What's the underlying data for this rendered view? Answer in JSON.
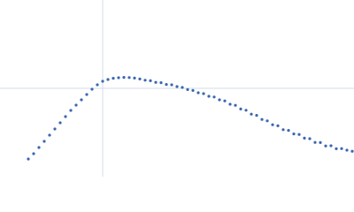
{
  "chart_data": {
    "type": "scatter",
    "x": [
      8,
      9.5,
      11,
      12.5,
      14,
      15.5,
      17,
      18.5,
      20,
      21.5,
      23,
      24.5,
      26,
      27.5,
      29,
      30.5,
      32,
      33.5,
      35,
      36.5,
      38,
      39.5,
      41,
      42.5,
      44,
      45.5,
      47,
      48.5,
      50,
      51.5,
      53,
      54.5,
      56,
      57.5,
      59,
      60.5,
      62,
      63.5,
      65,
      66.5,
      68,
      69.5,
      71,
      72.5,
      74,
      75.5,
      77,
      78.5,
      80,
      81.5,
      83,
      84.5,
      86,
      87.5,
      89,
      90.5,
      92,
      93.5,
      95,
      96.5,
      98,
      99.5
    ],
    "values": [
      10,
      13,
      16.5,
      20,
      23.5,
      27,
      30.5,
      34,
      37.5,
      40.5,
      43.5,
      46.5,
      49.5,
      52,
      54,
      55,
      55.7,
      56,
      56.2,
      56.1,
      55.8,
      55.3,
      54.6,
      54.3,
      53.4,
      53.2,
      52.2,
      52,
      51,
      50.5,
      49.3,
      48.8,
      47.5,
      47,
      45.5,
      45.1,
      43.5,
      42.9,
      41,
      40.4,
      38.3,
      37.6,
      35.4,
      34.7,
      32.4,
      31.6,
      29.4,
      28.8,
      26.6,
      26.2,
      24.2,
      23.9,
      21.8,
      21.5,
      19.4,
      19.3,
      17.4,
      17.5,
      15.8,
      15.9,
      15,
      14.4
    ],
    "color": "#3a67b1",
    "xlim": [
      0,
      100
    ],
    "ylim": [
      0,
      100
    ],
    "xticks": [
      29
    ],
    "yticks": [
      50
    ],
    "grid": true
  }
}
